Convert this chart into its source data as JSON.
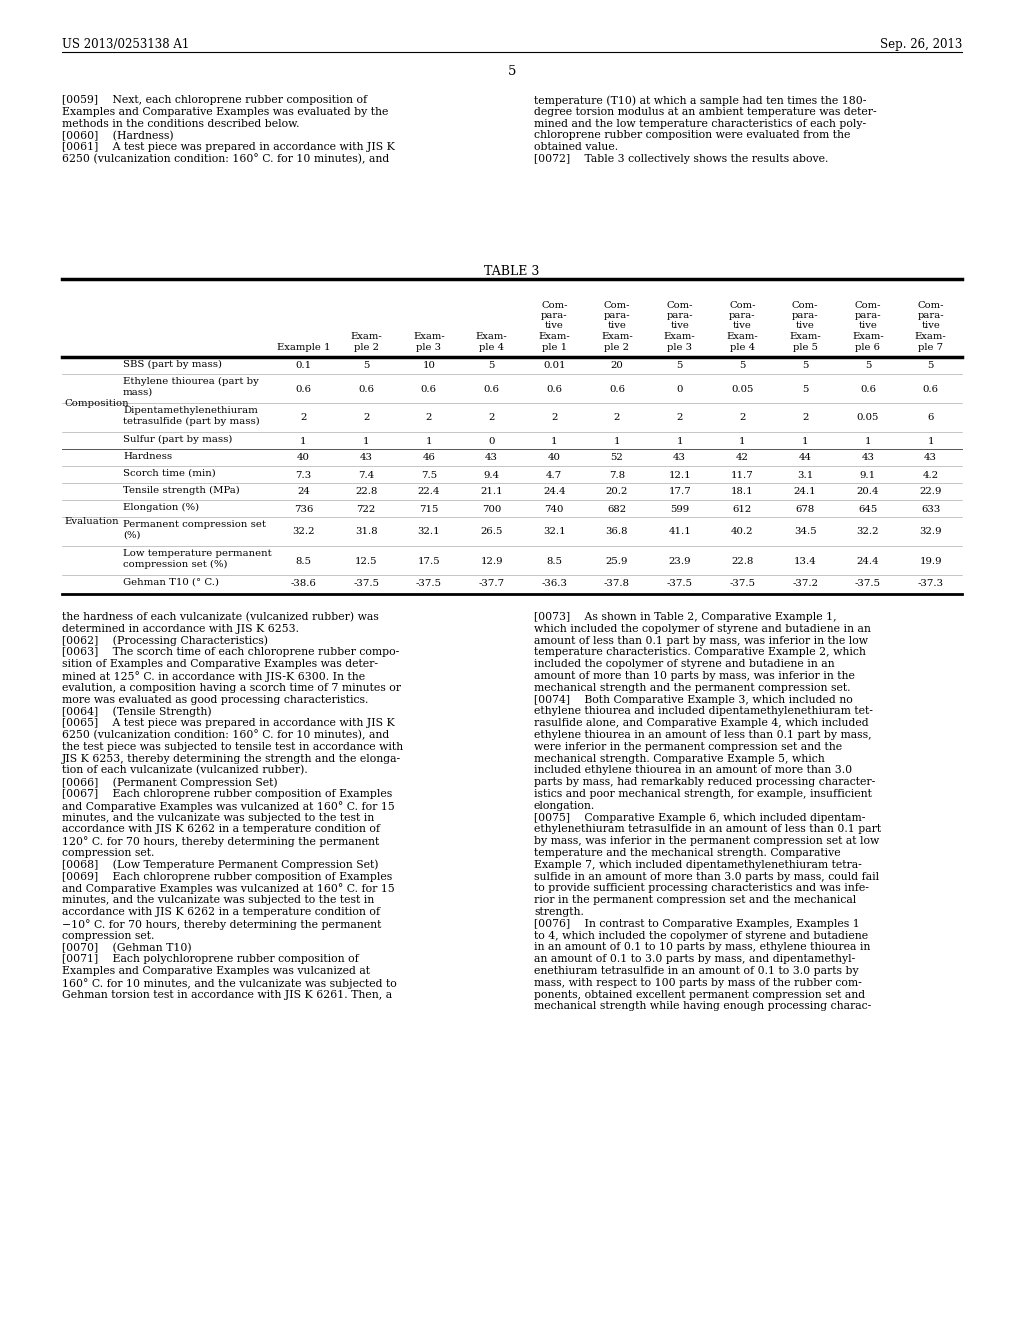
{
  "background_color": "#ffffff",
  "header_left": "US 2013/0253138 A1",
  "header_right": "Sep. 26, 2013",
  "page_number": "5",
  "table_title": "TABLE 3",
  "col_headers": [
    "Example 1",
    "Exam-\nple 2",
    "Exam-\nple 3",
    "Exam-\nple 4",
    "Com-\npara-\ntive\nExam-\nple 1",
    "Com-\npara-\ntive\nExam-\nple 2",
    "Com-\npara-\ntive\nExam-\nple 3",
    "Com-\npara-\ntive\nExam-\nple 4",
    "Com-\npara-\ntive\nExam-\nple 5",
    "Com-\npara-\ntive\nExam-\nple 6",
    "Com-\npara-\ntive\nExam-\nple 7"
  ],
  "row_groups": [
    {
      "group": "Composition",
      "rows": [
        {
          "label": "SBS (part by mass)",
          "values": [
            "0.1",
            "5",
            "10",
            "5",
            "0.01",
            "20",
            "5",
            "5",
            "5",
            "5",
            "5"
          ]
        },
        {
          "label": "Ethylene thiourea (part by\nmass)",
          "values": [
            "0.6",
            "0.6",
            "0.6",
            "0.6",
            "0.6",
            "0.6",
            "0",
            "0.05",
            "5",
            "0.6",
            "0.6"
          ]
        },
        {
          "label": "Dipentamethylenethiuram\ntetrasulfide (part by mass)",
          "values": [
            "2",
            "2",
            "2",
            "2",
            "2",
            "2",
            "2",
            "2",
            "2",
            "0.05",
            "6"
          ]
        },
        {
          "label": "Sulfur (part by mass)",
          "values": [
            "1",
            "1",
            "1",
            "0",
            "1",
            "1",
            "1",
            "1",
            "1",
            "1",
            "1"
          ]
        }
      ]
    },
    {
      "group": "Evaluation",
      "rows": [
        {
          "label": "Hardness",
          "values": [
            "40",
            "43",
            "46",
            "43",
            "40",
            "52",
            "43",
            "42",
            "44",
            "43",
            "43"
          ]
        },
        {
          "label": "Scorch time (min)",
          "values": [
            "7.3",
            "7.4",
            "7.5",
            "9.4",
            "4.7",
            "7.8",
            "12.1",
            "11.7",
            "3.1",
            "9.1",
            "4.2"
          ]
        },
        {
          "label": "Tensile strength (MPa)",
          "values": [
            "24",
            "22.8",
            "22.4",
            "21.1",
            "24.4",
            "20.2",
            "17.7",
            "18.1",
            "24.1",
            "20.4",
            "22.9"
          ]
        },
        {
          "label": "Elongation (%)",
          "values": [
            "736",
            "722",
            "715",
            "700",
            "740",
            "682",
            "599",
            "612",
            "678",
            "645",
            "633"
          ]
        },
        {
          "label": "Permanent compression set\n(%)",
          "values": [
            "32.2",
            "31.8",
            "32.1",
            "26.5",
            "32.1",
            "36.8",
            "41.1",
            "40.2",
            "34.5",
            "32.2",
            "32.9"
          ]
        },
        {
          "label": "Low temperature permanent\ncompression set (%)",
          "values": [
            "8.5",
            "12.5",
            "17.5",
            "12.9",
            "8.5",
            "25.9",
            "23.9",
            "22.8",
            "13.4",
            "24.4",
            "19.9"
          ]
        },
        {
          "label": "Gehman T10 (° C.)",
          "values": [
            "-38.6",
            "-37.5",
            "-37.5",
            "-37.7",
            "-36.3",
            "-37.8",
            "-37.5",
            "-37.5",
            "-37.2",
            "-37.5",
            "-37.3"
          ]
        }
      ]
    }
  ],
  "upper_left": [
    {
      "text": "[0059]  Next, each chloroprene rubber composition of",
      "indent": 0
    },
    {
      "text": "Examples and Comparative Examples was evaluated by the",
      "indent": 0
    },
    {
      "text": "methods in the conditions described below.",
      "indent": 0
    },
    {
      "text": "[0060]  (Hardness)",
      "indent": 0
    },
    {
      "text": "[0061]  A test piece was prepared in accordance with JIS K",
      "indent": 0
    },
    {
      "text": "6250 (vulcanization condition: 160° C. for 10 minutes), and",
      "indent": 0
    }
  ],
  "upper_right": [
    {
      "text": "temperature (T10) at which a sample had ten times the 180-",
      "indent": 0
    },
    {
      "text": "degree torsion modulus at an ambient temperature was deter-",
      "indent": 0
    },
    {
      "text": "mined and the low temperature characteristics of each poly-",
      "indent": 0
    },
    {
      "text": "chloroprene rubber composition were evaluated from the",
      "indent": 0
    },
    {
      "text": "obtained value.",
      "indent": 0
    },
    {
      "text": "[0072]  Table 3 collectively shows the results above.",
      "indent": 0
    }
  ],
  "lower_left": [
    "the hardness of each vulcanizate (vulcanized rubber) was",
    "determined in accordance with JIS K 6253.",
    "[0062]  (Processing Characteristics)",
    "[0063]  The scorch time of each chloroprene rubber compo-",
    "sition of Examples and Comparative Examples was deter-",
    "mined at 125° C. in accordance with JIS-K 6300. In the",
    "evalution, a composition having a scorch time of 7 minutes or",
    "more was evaluated as good processing characteristics.",
    "[0064]  (Tensile Strength)",
    "[0065]  A test piece was prepared in accordance with JIS K",
    "6250 (vulcanization condition: 160° C. for 10 minutes), and",
    "the test piece was subjected to tensile test in accordance with",
    "JIS K 6253, thereby determining the strength and the elonga-",
    "tion of each vulcanizate (vulcanized rubber).",
    "[0066]  (Permanent Compression Set)",
    "[0067]  Each chloroprene rubber composition of Examples",
    "and Comparative Examples was vulcanized at 160° C. for 15",
    "minutes, and the vulcanizate was subjected to the test in",
    "accordance with JIS K 6262 in a temperature condition of",
    "120° C. for 70 hours, thereby determining the permanent",
    "compression set.",
    "[0068]  (Low Temperature Permanent Compression Set)",
    "[0069]  Each chloroprene rubber composition of Examples",
    "and Comparative Examples was vulcanized at 160° C. for 15",
    "minutes, and the vulcanizate was subjected to the test in",
    "accordance with JIS K 6262 in a temperature condition of",
    "−10° C. for 70 hours, thereby determining the permanent",
    "compression set.",
    "[0070]  (Gehman T10)",
    "[0071]  Each polychloroprene rubber composition of",
    "Examples and Comparative Examples was vulcanized at",
    "160° C. for 10 minutes, and the vulcanizate was subjected to",
    "Gehman torsion test in accordance with JIS K 6261. Then, a"
  ],
  "lower_right": [
    "[0073]  As shown in Table 2, Comparative Example 1,",
    "which included the copolymer of styrene and butadiene in an",
    "amount of less than 0.1 part by mass, was inferior in the low",
    "temperature characteristics. Comparative Example 2, which",
    "included the copolymer of styrene and butadiene in an",
    "amount of more than 10 parts by mass, was inferior in the",
    "mechanical strength and the permanent compression set.",
    "[0074]  Both Comparative Example 3, which included no",
    "ethylene thiourea and included dipentamethylenethiuram tet-",
    "rasulfide alone, and Comparative Example 4, which included",
    "ethylene thiourea in an amount of less than 0.1 part by mass,",
    "were inferior in the permanent compression set and the",
    "mechanical strength. Comparative Example 5, which",
    "included ethylene thiourea in an amount of more than 3.0",
    "parts by mass, had remarkably reduced processing character-",
    "istics and poor mechanical strength, for example, insufficient",
    "elongation.",
    "[0075]  Comparative Example 6, which included dipentam-",
    "ethylenethiuram tetrasulfide in an amount of less than 0.1 part",
    "by mass, was inferior in the permanent compression set at low",
    "temperature and the mechanical strength. Comparative",
    "Example 7, which included dipentamethylenethiuram tetra-",
    "sulfide in an amount of more than 3.0 parts by mass, could fail",
    "to provide sufficient processing characteristics and was infe-",
    "rior in the permanent compression set and the mechanical",
    "strength.",
    "[0076]  In contrast to Comparative Examples, Examples 1",
    "to 4, which included the copolymer of styrene and butadiene",
    "in an amount of 0.1 to 10 parts by mass, ethylene thiourea in",
    "an amount of 0.1 to 3.0 parts by mass, and dipentamethyl-",
    "enethiuram tetrasulfide in an amount of 0.1 to 3.0 parts by",
    "mass, with respect to 100 parts by mass of the rubber com-",
    "ponents, obtained excellent permanent compression set and",
    "mechanical strength while having enough processing charac-"
  ]
}
